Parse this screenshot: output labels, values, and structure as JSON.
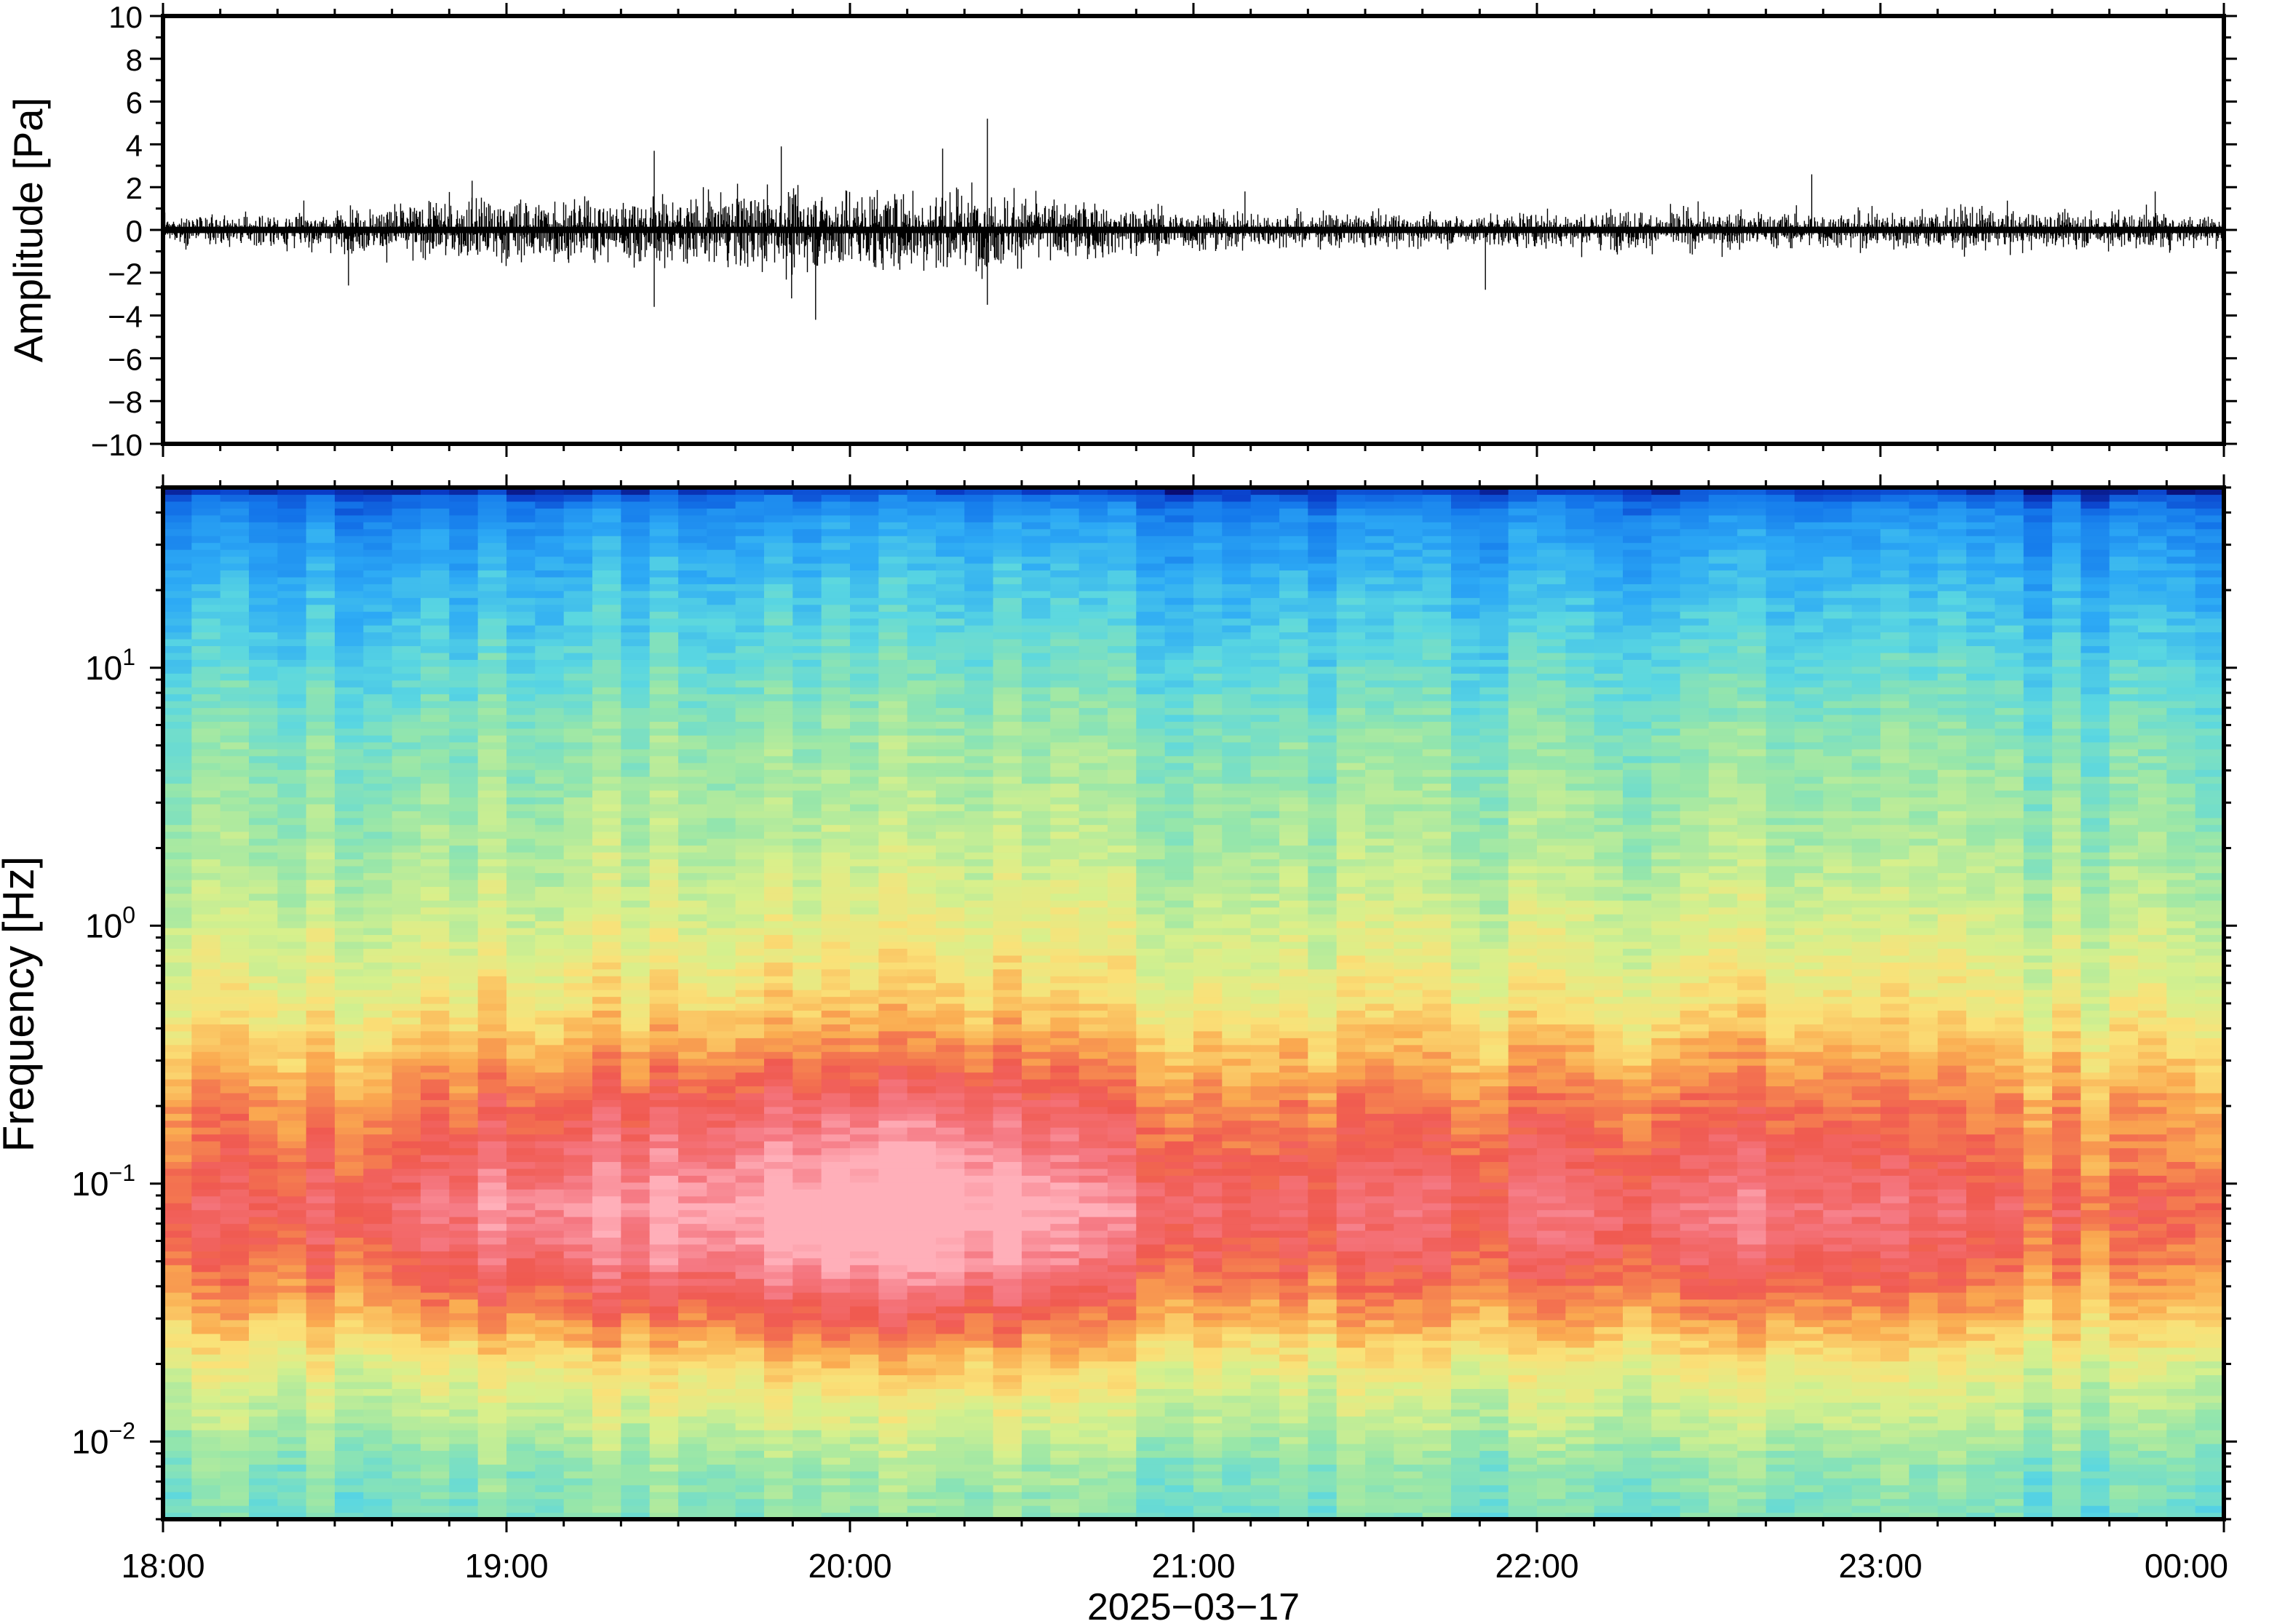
{
  "chart_data": [
    {
      "type": "line",
      "title": "",
      "ylabel": "Amplitude [Pa]",
      "ylim": [
        -10,
        10
      ],
      "yticks": [
        "10",
        "8",
        "6",
        "4",
        "2",
        "0",
        "−2",
        "−4",
        "−6",
        "−8",
        "−10"
      ],
      "yticks_values": [
        10,
        8,
        6,
        4,
        2,
        0,
        -2,
        -4,
        -6,
        -8,
        -10
      ],
      "grid": false,
      "line_color": "#000000",
      "envelope": {
        "description": "approximate amplitude envelope, hours after 18:00",
        "t_hours": [
          0,
          0.25,
          0.5,
          0.75,
          1.0,
          1.25,
          1.5,
          1.75,
          2.0,
          2.25,
          2.5,
          2.75,
          3.0,
          3.25,
          3.5,
          3.75,
          4.0,
          4.25,
          4.5,
          4.75,
          5.0,
          5.25,
          5.5,
          5.75,
          6.0
        ],
        "amp_pa": [
          0.6,
          0.7,
          0.9,
          1.3,
          1.5,
          1.4,
          1.5,
          1.8,
          1.9,
          2.0,
          1.6,
          1.2,
          0.9,
          0.8,
          0.8,
          0.7,
          0.8,
          0.9,
          0.9,
          0.8,
          0.9,
          1.0,
          0.8,
          0.9,
          0.7
        ]
      },
      "peaks": [
        {
          "t_hours": 0.54,
          "pa": -2.6
        },
        {
          "t_hours": 0.9,
          "pa": 2.3
        },
        {
          "t_hours": 1.43,
          "pa": 3.7
        },
        {
          "t_hours": 1.43,
          "pa": -3.6
        },
        {
          "t_hours": 1.8,
          "pa": 3.9
        },
        {
          "t_hours": 1.83,
          "pa": -3.2
        },
        {
          "t_hours": 1.9,
          "pa": -4.2
        },
        {
          "t_hours": 2.27,
          "pa": 3.8
        },
        {
          "t_hours": 2.4,
          "pa": 5.2
        },
        {
          "t_hours": 2.4,
          "pa": -3.5
        },
        {
          "t_hours": 3.15,
          "pa": 1.8
        },
        {
          "t_hours": 3.85,
          "pa": -2.8
        },
        {
          "t_hours": 4.8,
          "pa": 2.6
        },
        {
          "t_hours": 5.8,
          "pa": 1.8
        }
      ]
    },
    {
      "type": "heatmap",
      "title": "",
      "ylabel": "Frequency [Hz]",
      "xlabel": "2025−03−17",
      "yscale": "log",
      "ylim": [
        0.005,
        50
      ],
      "ytick_labels": [
        {
          "base": "10",
          "exp": "1",
          "value": 10
        },
        {
          "base": "10",
          "exp": "0",
          "value": 1
        },
        {
          "base": "10",
          "exp": "−1",
          "value": 0.1
        },
        {
          "base": "10",
          "exp": "−2",
          "value": 0.01
        }
      ],
      "xtick_labels": [
        "18:00",
        "19:00",
        "20:00",
        "21:00",
        "22:00",
        "23:00",
        "00:00"
      ],
      "x_range_hours": [
        0,
        6
      ],
      "colormap": "rainbow (blue low → red high → pink highest)",
      "band_profile": {
        "description": "approximate relative power level (0–1) versus frequency",
        "freq_hz": [
          0.005,
          0.008,
          0.012,
          0.02,
          0.03,
          0.05,
          0.08,
          0.12,
          0.2,
          0.3,
          0.5,
          1,
          2,
          5,
          10,
          20,
          35,
          48
        ],
        "level": [
          0.42,
          0.45,
          0.52,
          0.6,
          0.7,
          0.8,
          0.85,
          0.8,
          0.76,
          0.7,
          0.62,
          0.56,
          0.5,
          0.45,
          0.38,
          0.3,
          0.22,
          0.12
        ]
      },
      "activity_over_time": {
        "description": "approximate relative intensity boost versus time, hours after 18:00",
        "t_hours": [
          0,
          0.5,
          1.0,
          1.5,
          1.9,
          2.3,
          2.7,
          3.2,
          3.7,
          4.2,
          4.7,
          5.2,
          5.7,
          6.0
        ],
        "boost": [
          0.0,
          0.02,
          0.08,
          0.1,
          0.14,
          0.15,
          0.07,
          0.02,
          0.03,
          0.04,
          0.05,
          0.02,
          -0.02,
          0.0
        ]
      },
      "grid": false
    }
  ]
}
